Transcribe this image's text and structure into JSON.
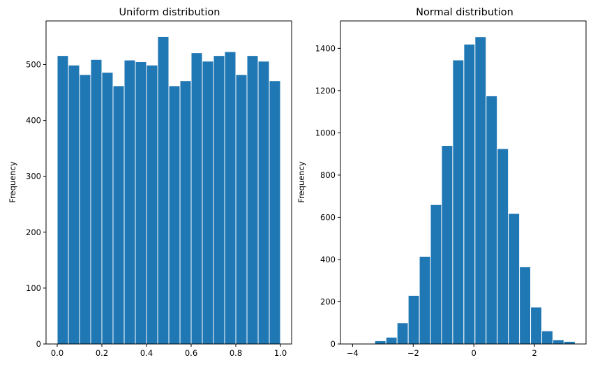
{
  "chart_data": [
    {
      "type": "bar",
      "title": "Uniform distribution",
      "xlabel": "",
      "ylabel": "Frequency",
      "xlim": [
        -0.05,
        1.05
      ],
      "ylim": [
        0,
        578
      ],
      "bin_edges": [
        0.0,
        0.05,
        0.1,
        0.15,
        0.2,
        0.25,
        0.3,
        0.35,
        0.4,
        0.45,
        0.5,
        0.55,
        0.6,
        0.65,
        0.7,
        0.75,
        0.8,
        0.85,
        0.9,
        0.95,
        1.0
      ],
      "values": [
        516,
        499,
        482,
        509,
        486,
        462,
        508,
        505,
        499,
        550,
        462,
        471,
        521,
        506,
        516,
        523,
        482,
        516,
        506,
        471
      ],
      "xticks": [
        0.0,
        0.2,
        0.4,
        0.6,
        0.8,
        1.0
      ],
      "xtick_labels": [
        "0.0",
        "0.2",
        "0.4",
        "0.6",
        "0.8",
        "1.0"
      ],
      "yticks": [
        0,
        100,
        200,
        300,
        400,
        500
      ],
      "ytick_labels": [
        "0",
        "100",
        "200",
        "300",
        "400",
        "500"
      ],
      "color": "#1f77b4",
      "grid": false
    },
    {
      "type": "bar",
      "title": "Normal distribution",
      "xlabel": "",
      "ylabel": "Frequency",
      "xlim": [
        -4.4,
        3.7
      ],
      "ylim": [
        0,
        1530
      ],
      "bin_edges": [
        -4.0,
        -3.633,
        -3.266,
        -2.899,
        -2.532,
        -2.165,
        -1.798,
        -1.431,
        -1.064,
        -0.697,
        -0.33,
        0.037,
        0.404,
        0.771,
        1.138,
        1.505,
        1.872,
        2.239,
        2.606,
        2.973,
        3.34
      ],
      "values": [
        3,
        2,
        15,
        32,
        100,
        230,
        415,
        660,
        940,
        1345,
        1420,
        1455,
        1175,
        925,
        618,
        365,
        175,
        62,
        20,
        12
      ],
      "xticks": [
        -4,
        -2,
        0,
        2
      ],
      "xtick_labels": [
        "−4",
        "−2",
        "0",
        "2"
      ],
      "yticks": [
        0,
        200,
        400,
        600,
        800,
        1000,
        1200,
        1400
      ],
      "ytick_labels": [
        "0",
        "200",
        "400",
        "600",
        "800",
        "1000",
        "1200",
        "1400"
      ],
      "color": "#1f77b4",
      "grid": false
    }
  ]
}
